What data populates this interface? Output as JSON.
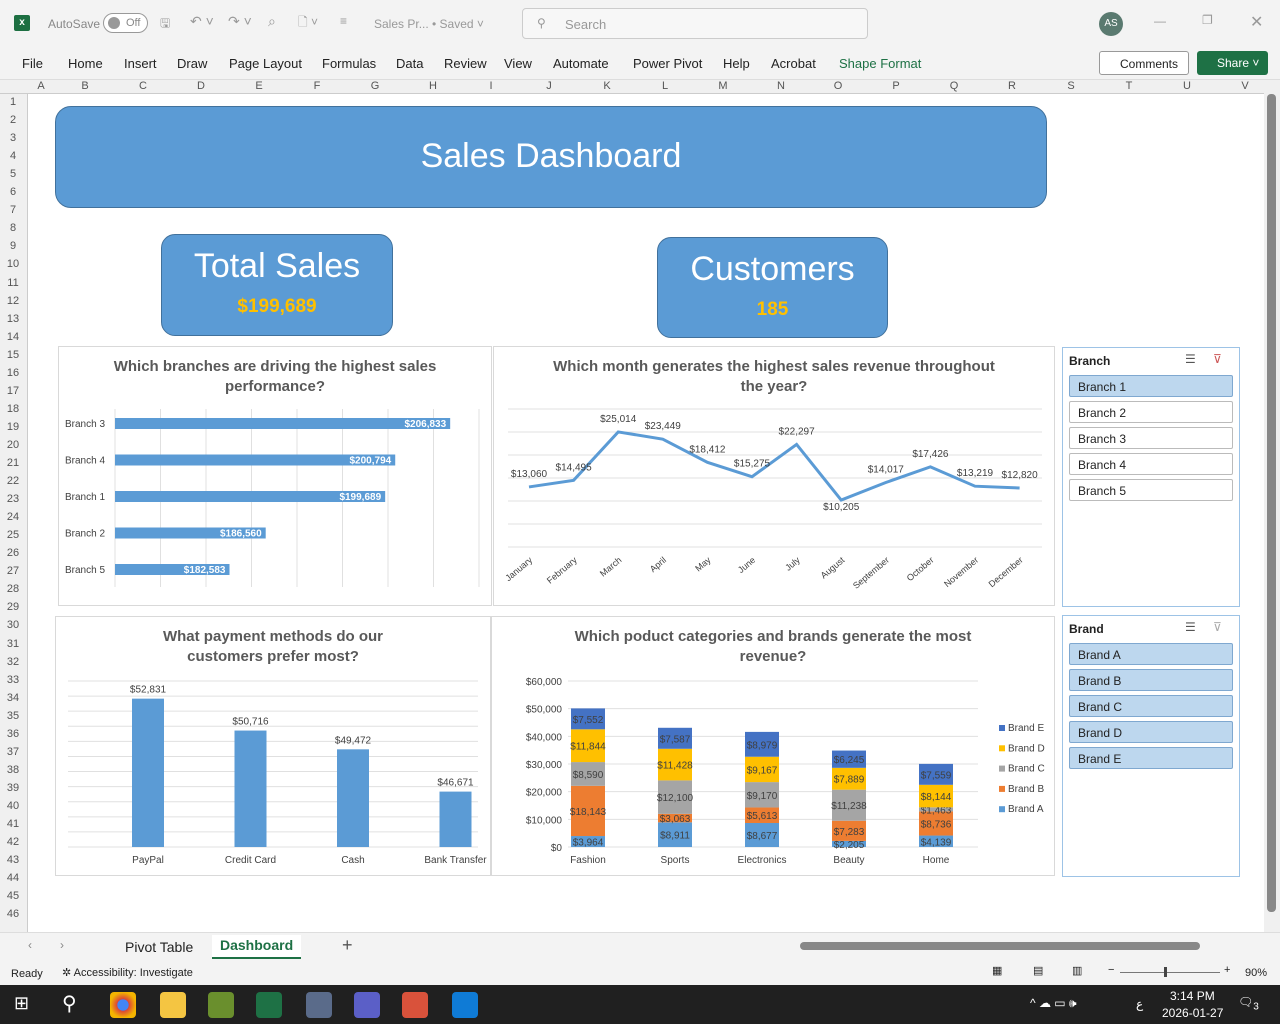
{
  "titlebar": {
    "autosave": "AutoSave",
    "autosave_state": "Off",
    "filename": "Sales Pr...",
    "saved": "• Saved",
    "search_placeholder": "Search",
    "avatar": "AS"
  },
  "ribbon": {
    "tabs": [
      "File",
      "Home",
      "Insert",
      "Draw",
      "Page Layout",
      "Formulas",
      "Data",
      "Review",
      "View",
      "Automate",
      "Power Pivot",
      "Help",
      "Acrobat",
      "Shape Format"
    ],
    "comments": "Comments",
    "share": "Share"
  },
  "columns": [
    "A",
    "B",
    "C",
    "D",
    "E",
    "F",
    "G",
    "H",
    "I",
    "J",
    "K",
    "L",
    "M",
    "N",
    "O",
    "P",
    "Q",
    "R",
    "S",
    "T",
    "U",
    "V"
  ],
  "rows": 46,
  "dashboard": {
    "title": "Sales Dashboard",
    "total_sales_label": "Total Sales",
    "total_sales_value": "$199,689",
    "customers_label": "Customers",
    "customers_value": "185"
  },
  "chart_data": [
    {
      "type": "bar",
      "orientation": "horizontal",
      "title": "Which branches are driving the highest sales performance?",
      "categories": [
        "Branch 3",
        "Branch 4",
        "Branch 1",
        "Branch 2",
        "Branch 5"
      ],
      "values": [
        206833,
        200794,
        199689,
        186560,
        182583
      ],
      "labels": [
        "$206,833",
        "$200,794",
        "$199,689",
        "$186,560",
        "$182,583"
      ],
      "xlim": [
        170000,
        210000
      ],
      "color": "#5b9bd5"
    },
    {
      "type": "line",
      "title": "Which month generates the highest sales revenue throughout the year?",
      "categories": [
        "January",
        "February",
        "March",
        "April",
        "May",
        "June",
        "July",
        "August",
        "September",
        "October",
        "November",
        "December"
      ],
      "values": [
        13060,
        14495,
        25014,
        23449,
        18412,
        15275,
        22297,
        10205,
        14017,
        17426,
        13219,
        12820
      ],
      "labels": [
        "$13,060",
        "$14,495",
        "$25,014",
        "$23,449",
        "$18,412",
        "$15,275",
        "$22,297",
        "$10,205",
        "$14,017",
        "$17,426",
        "$13,219",
        "$12,820"
      ],
      "ylim": [
        0,
        30000
      ],
      "color": "#5b9bd5"
    },
    {
      "type": "bar",
      "title": "What payment methods do our customers prefer most?",
      "categories": [
        "PayPal",
        "Credit Card",
        "Cash",
        "Bank Transfer"
      ],
      "values": [
        52831,
        50716,
        49472,
        46671
      ],
      "labels": [
        "$52,831",
        "$50,716",
        "$49,472",
        "$46,671"
      ],
      "ylim": [
        43000,
        54000
      ],
      "color": "#5b9bd5"
    },
    {
      "type": "bar",
      "stacked": true,
      "title": "Which poduct categories and brands generate the most revenue?",
      "categories": [
        "Fashion",
        "Sports",
        "Electronics",
        "Beauty",
        "Home"
      ],
      "ylim": [
        0,
        60000
      ],
      "yticks": [
        "$0",
        "$10,000",
        "$20,000",
        "$30,000",
        "$40,000",
        "$50,000",
        "$60,000"
      ],
      "series": [
        {
          "name": "Brand A",
          "color": "#5b9bd5",
          "values": [
            3964,
            8911,
            8677,
            2205,
            4139
          ],
          "labels": [
            "$3,964",
            "$8,911",
            "$8,677",
            "$2,205",
            "$4,139"
          ]
        },
        {
          "name": "Brand B",
          "color": "#ed7d31",
          "values": [
            18143,
            3063,
            5613,
            7283,
            8736
          ],
          "labels": [
            "$18,143",
            "$3,063",
            "$5,613",
            "$7,283",
            "$8,736"
          ]
        },
        {
          "name": "Brand C",
          "color": "#a5a5a5",
          "values": [
            8590,
            12100,
            9170,
            11238,
            1463
          ],
          "labels": [
            "$8,590",
            "$12,100",
            "$9,170",
            "$11,238",
            "$1,463"
          ]
        },
        {
          "name": "Brand D",
          "color": "#ffc000",
          "values": [
            11844,
            11428,
            9167,
            7889,
            8144
          ],
          "labels": [
            "$11,844",
            "$11,428",
            "$9,167",
            "$7,889",
            "$8,144"
          ]
        },
        {
          "name": "Brand E",
          "color": "#4472c4",
          "values": [
            7552,
            7587,
            8979,
            6245,
            7559
          ],
          "labels": [
            "$7,552",
            "$7,587",
            "$8,979",
            "$6,245",
            "$7,559"
          ]
        }
      ],
      "legend": "right"
    }
  ],
  "slicers": {
    "branch": {
      "title": "Branch",
      "items": [
        "Branch 1",
        "Branch 2",
        "Branch 3",
        "Branch 4",
        "Branch 5"
      ],
      "selected": [
        true,
        false,
        false,
        false,
        false
      ]
    },
    "brand": {
      "title": "Brand",
      "items": [
        "Brand A",
        "Brand B",
        "Brand C",
        "Brand D",
        "Brand E"
      ],
      "selected": [
        true,
        true,
        true,
        true,
        true
      ]
    }
  },
  "sheets": {
    "tabs": [
      "Pivot Table",
      "Dashboard"
    ],
    "active": "Dashboard"
  },
  "status": {
    "ready": "Ready",
    "accessibility": "Accessibility: Investigate",
    "zoom": "90%"
  },
  "taskbar": {
    "time": "3:14 PM",
    "date": "2026-01-27",
    "lang": "ع",
    "notif": "3"
  }
}
